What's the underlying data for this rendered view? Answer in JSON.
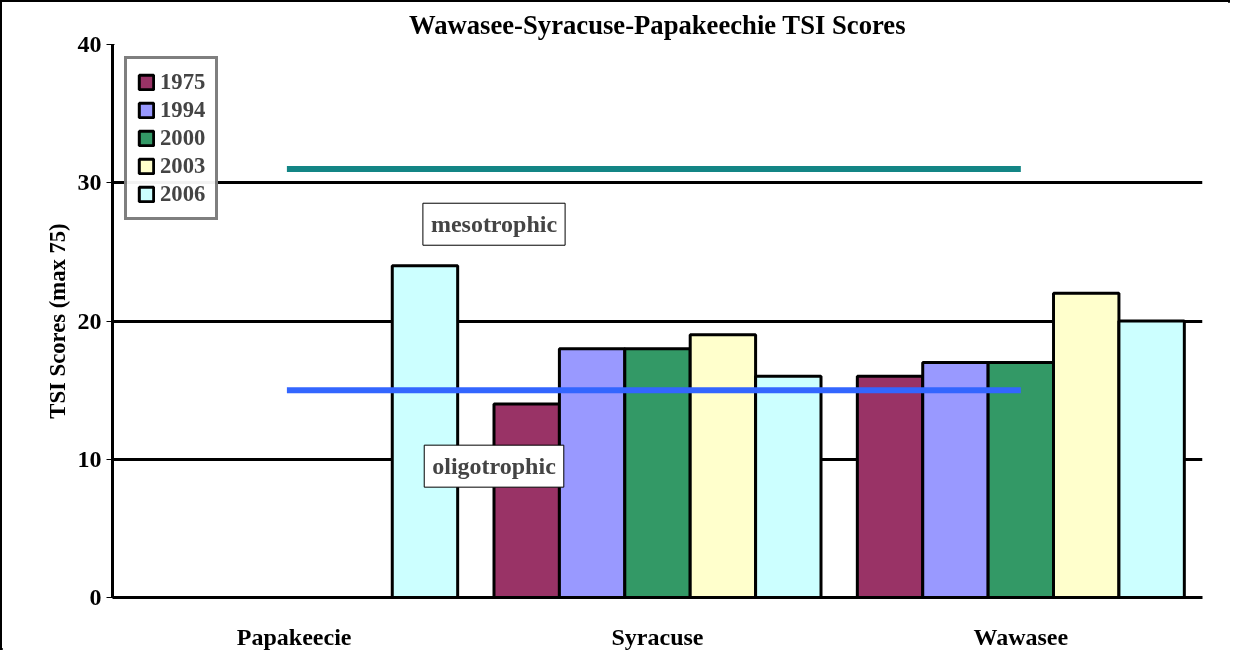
{
  "chart_data": {
    "type": "bar",
    "title": "Wawasee-Syracuse-Papakeechie TSI Scores",
    "ylabel": "TSI Scores (max 75)",
    "categories": [
      "Papakeecie",
      "Syracuse",
      "Wawasee"
    ],
    "series": [
      {
        "name": "1975",
        "color": "#993366",
        "values": [
          null,
          14,
          16
        ]
      },
      {
        "name": "1994",
        "color": "#9999ff",
        "values": [
          null,
          18,
          17
        ]
      },
      {
        "name": "2000",
        "color": "#339966",
        "values": [
          null,
          18,
          17
        ]
      },
      {
        "name": "2003",
        "color": "#ffffcc",
        "values": [
          null,
          19,
          22
        ]
      },
      {
        "name": "2006",
        "color": "#ccffff",
        "values": [
          24,
          16,
          20
        ]
      }
    ],
    "ylim": [
      0,
      40
    ],
    "yticks": [
      0,
      10,
      20,
      30,
      40
    ],
    "grid": "y",
    "legend": "top left",
    "ref_lines": [
      {
        "axis": "y",
        "value": 31,
        "color": "#138585"
      },
      {
        "axis": "y",
        "value": 15,
        "color": "#3366ff"
      }
    ],
    "annotations": [
      "mesotrophic",
      "oligotrophic"
    ]
  }
}
